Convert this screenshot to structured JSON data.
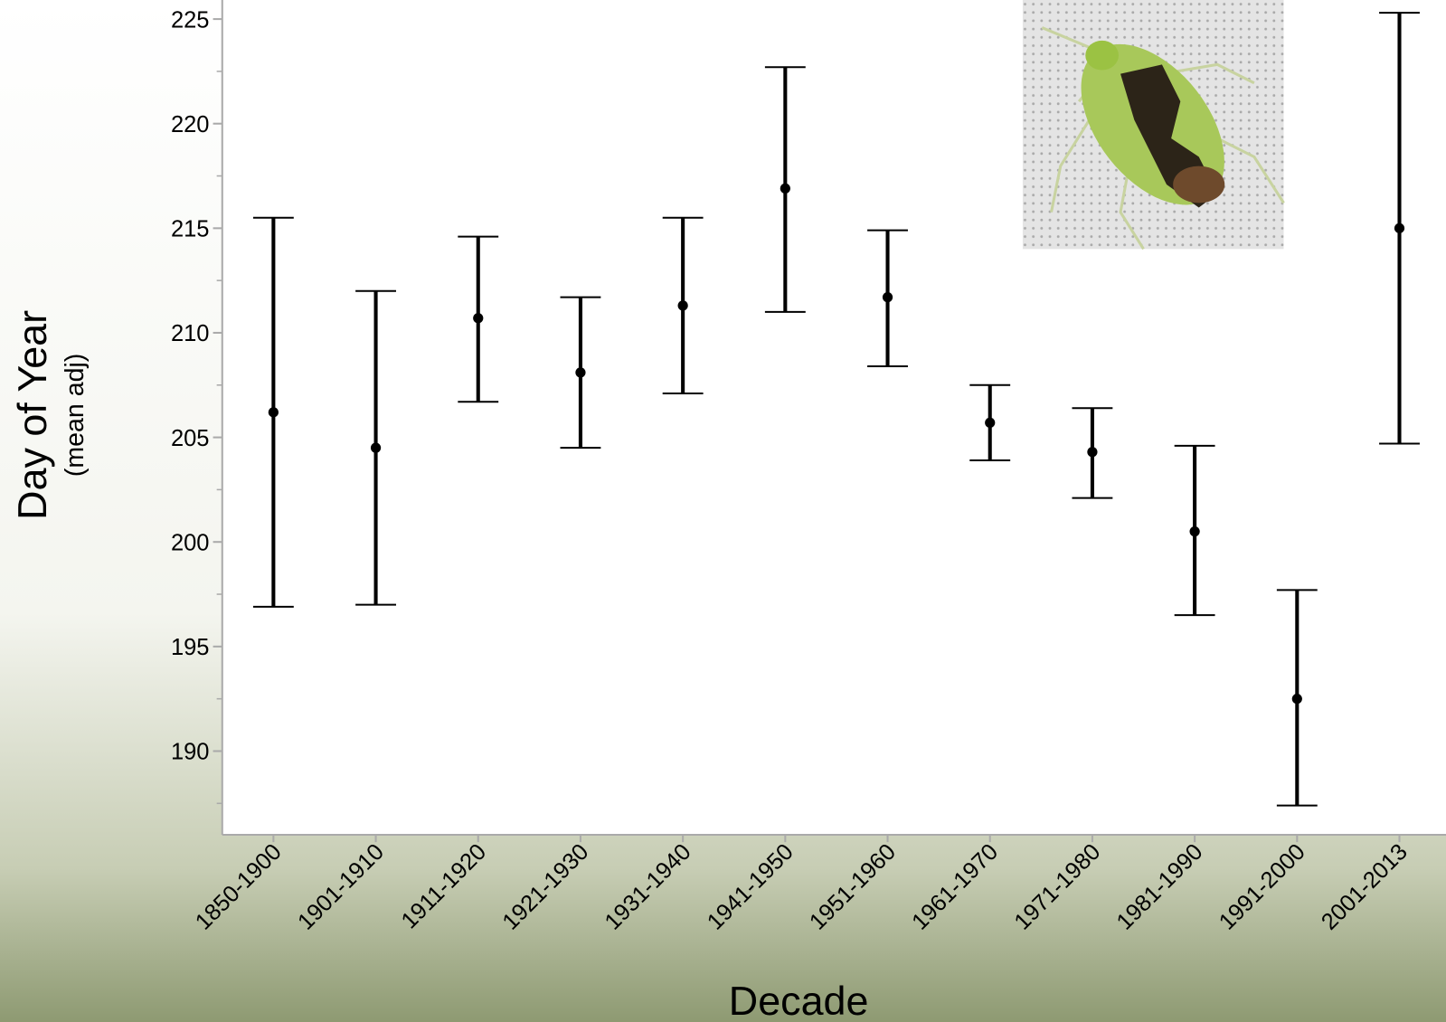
{
  "chart_data": {
    "type": "errorbar",
    "y_label": "Day of Year",
    "y_sublabel": "(mean adj)",
    "x_label": "Decade",
    "categories": [
      "1850-1900",
      "1901-1910",
      "1911-1920",
      "1921-1930",
      "1931-1940",
      "1941-1950",
      "1951-1960",
      "1961-1970",
      "1971-1980",
      "1981-1990",
      "1991-2000",
      "2001-2013"
    ],
    "values": [
      206.2,
      204.5,
      210.7,
      208.1,
      211.3,
      216.9,
      211.7,
      205.7,
      204.3,
      200.5,
      192.5,
      215.0
    ],
    "lower": [
      196.9,
      197.0,
      206.7,
      204.5,
      207.1,
      211.0,
      208.4,
      203.9,
      202.1,
      196.5,
      187.4,
      204.7
    ],
    "upper": [
      215.5,
      212.0,
      214.6,
      211.7,
      215.5,
      222.7,
      214.9,
      207.5,
      206.4,
      204.6,
      197.7,
      225.3
    ],
    "color": "#000000",
    "ylim": [
      186,
      226
    ],
    "yticks": [
      190,
      195,
      200,
      205,
      210,
      215,
      220,
      225
    ],
    "yminorticks": [
      187.5,
      192.5,
      197.5,
      202.5,
      207.5,
      212.5,
      217.5,
      222.5
    ],
    "grid": false
  }
}
